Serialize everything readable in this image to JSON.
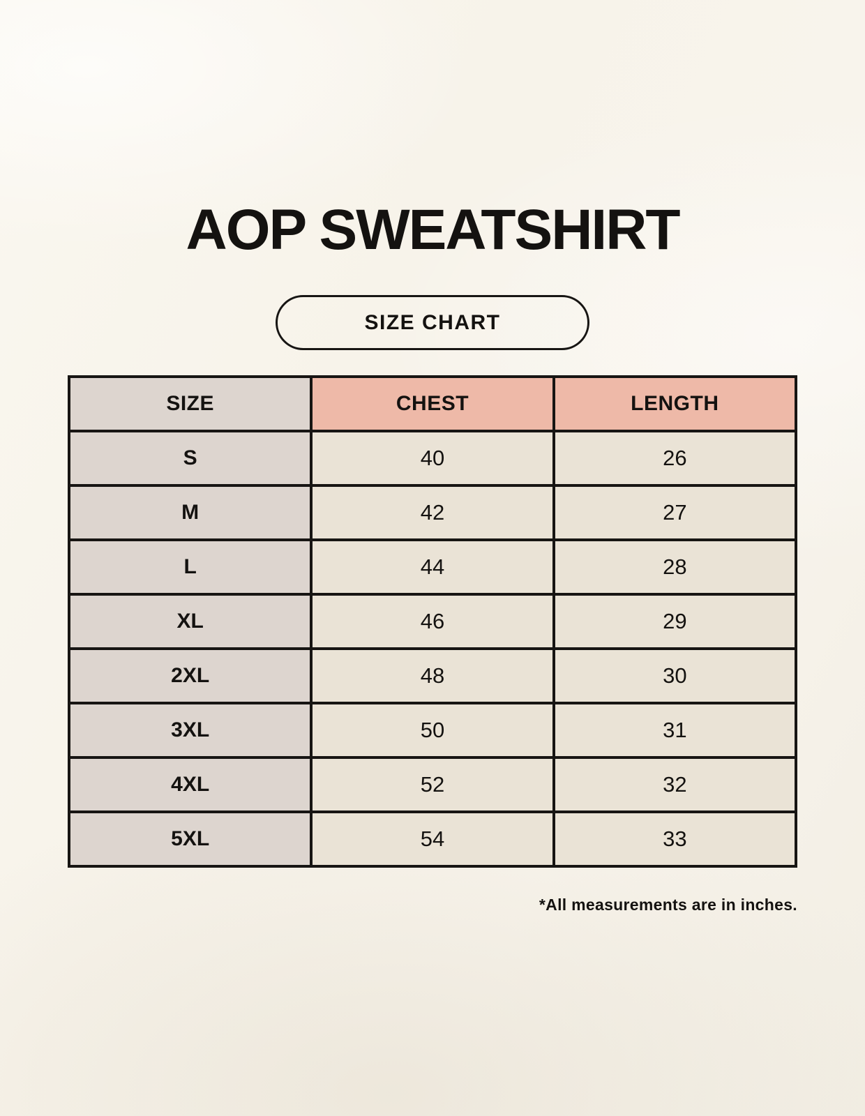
{
  "chart_data": {
    "type": "table",
    "title": "AOP SWEATSHIRT",
    "subtitle": "SIZE CHART",
    "columns": [
      "SIZE",
      "CHEST",
      "LENGTH"
    ],
    "rows": [
      {
        "size": "S",
        "chest": "40",
        "length": "26"
      },
      {
        "size": "M",
        "chest": "42",
        "length": "27"
      },
      {
        "size": "L",
        "chest": "44",
        "length": "28"
      },
      {
        "size": "XL",
        "chest": "46",
        "length": "29"
      },
      {
        "size": "2XL",
        "chest": "48",
        "length": "30"
      },
      {
        "size": "3XL",
        "chest": "50",
        "length": "31"
      },
      {
        "size": "4XL",
        "chest": "52",
        "length": "32"
      },
      {
        "size": "5XL",
        "chest": "54",
        "length": "33"
      }
    ],
    "units_note": "*All measurements are in inches."
  },
  "colors": {
    "bg": "#f8f4ec",
    "cell_gray": "#ddd5cf",
    "cell_pink": "#eeb9a8",
    "cell_cream": "#eae3d6",
    "border_color": "#171513",
    "text_color": "#141210"
  }
}
